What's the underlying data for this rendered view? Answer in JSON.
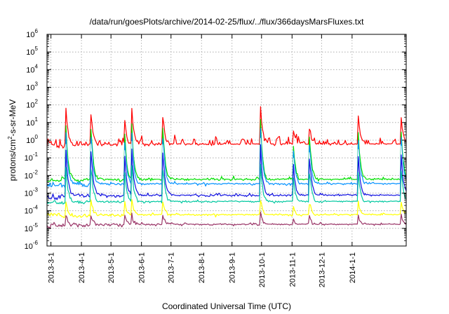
{
  "chart_data": {
    "type": "line",
    "title": "/data/run/goesPlots/archive/2014-02-25/flux/../flux/366daysMarsFluxes.txt",
    "xlabel": "Coordinated Universal Time (UTC)",
    "ylabel_main": "protons/cm",
    "ylabel_sup": "2",
    "ylabel_tail": "-s-sr-MeV",
    "yscale": "log",
    "ylim_exp": [
      -6,
      6
    ],
    "y_tick_base": "10",
    "y_tick_exponents": [
      "-6",
      "-5",
      "-4",
      "-3",
      "-2",
      "-1",
      "0",
      "1",
      "2",
      "3",
      "4",
      "5",
      "6"
    ],
    "xlim": [
      "2013-02-25",
      "2014-02-25"
    ],
    "x_ticks": [
      {
        "date": "2013-03-01",
        "label": "2013-3-1"
      },
      {
        "date": "2013-04-01",
        "label": "2013-4-1"
      },
      {
        "date": "2013-05-01",
        "label": "2013-5-1"
      },
      {
        "date": "2013-06-01",
        "label": "2013-6-1"
      },
      {
        "date": "2013-07-01",
        "label": "2013-7-1"
      },
      {
        "date": "2013-08-01",
        "label": "2013-8-1"
      },
      {
        "date": "2013-09-01",
        "label": "2013-9-1"
      },
      {
        "date": "2013-10-01",
        "label": "2013-10-1"
      },
      {
        "date": "2013-11-01",
        "label": "2013-11-1"
      },
      {
        "date": "2013-12-01",
        "label": "2013-12-1"
      },
      {
        "date": "2014-01-01",
        "label": "2014-1-1"
      }
    ],
    "grid": true,
    "legend": "none",
    "events": [
      {
        "date": "2013-03-16",
        "peak_log": 2.1
      },
      {
        "date": "2013-04-11",
        "peak_log": 1.4
      },
      {
        "date": "2013-05-15",
        "peak_log": 1.1
      },
      {
        "date": "2013-05-22",
        "peak_log": 2.0
      },
      {
        "date": "2013-06-23",
        "peak_log": 1.3
      },
      {
        "date": "2013-09-30",
        "peak_log": 2.0
      },
      {
        "date": "2013-11-02",
        "peak_log": 0.8
      },
      {
        "date": "2013-11-19",
        "peak_log": 0.7
      },
      {
        "date": "2014-01-07",
        "peak_log": 1.7
      },
      {
        "date": "2014-02-20",
        "peak_log": 1.2
      }
    ],
    "series": [
      {
        "color": "#ff0000",
        "base_log": -0.3,
        "noise": 0.55,
        "event_scale": 1.0,
        "width": 1.2
      },
      {
        "color": "#00e000",
        "base_log": -2.3,
        "noise": 0.25,
        "event_scale": 0.8,
        "width": 1.2
      },
      {
        "color": "#0090ff",
        "base_log": -2.55,
        "noise": 0.22,
        "event_scale": 0.7,
        "width": 1.2
      },
      {
        "color": "#ffffff",
        "base_log": -2.8,
        "noise": 0.18,
        "event_scale": 0.6,
        "width": 1.0
      },
      {
        "color": "#1010e0",
        "base_log": -3.2,
        "noise": 0.22,
        "event_scale": 0.55,
        "width": 1.2
      },
      {
        "color": "#00c8a0",
        "base_log": -3.55,
        "noise": 0.15,
        "event_scale": 0.4,
        "width": 1.2
      },
      {
        "color": "#ffff00",
        "base_log": -4.3,
        "noise": 0.18,
        "event_scale": 0.15,
        "width": 1.2
      },
      {
        "color": "#993366",
        "base_log": -4.85,
        "noise": 0.22,
        "event_scale": 0.1,
        "width": 1.2
      }
    ]
  }
}
